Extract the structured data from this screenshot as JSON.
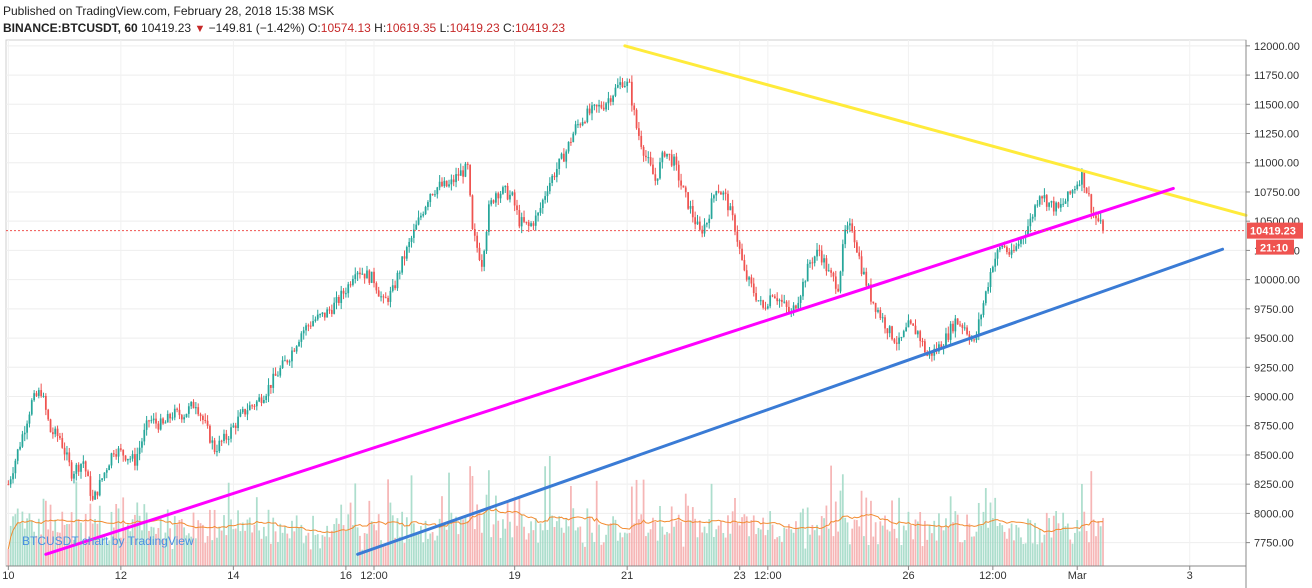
{
  "header": {
    "published": "Published on TradingView.com, February 28, 2018 15:38 MSK",
    "symbol": "BINANCE:BTCUSDT, 60",
    "last": "10419.23",
    "change": "−149.81 (−1.42%)",
    "o_label": "O:",
    "o_val": "10574.13",
    "h_label": "H:",
    "h_val": "10619.35",
    "l_label": "L:",
    "l_val": "10419.23",
    "c_label": "C:",
    "c_val": "10419.23"
  },
  "watermark": "BTCUSDT chart by TradingView",
  "price_tag": {
    "value": "10419.23",
    "countdown": "21:10"
  },
  "colors": {
    "up": "#26a69a",
    "down": "#ef5350",
    "yellow": "#ffeb3b",
    "magenta": "#ff00ff",
    "blue": "#3a7bd5",
    "ma": "#f28b30"
  },
  "chart_data": {
    "type": "candlestick",
    "ylim": [
      7550,
      12050
    ],
    "yticks": [
      7750,
      8000,
      8250,
      8500,
      8750,
      9000,
      9250,
      9500,
      9750,
      10000,
      10250,
      10500,
      10750,
      11000,
      11250,
      11500,
      11750,
      12000
    ],
    "ytick_labels": [
      "7750.00",
      "8000.00",
      "8250.00",
      "8500.00",
      "8750.00",
      "9000.00",
      "9250.00",
      "9500.00",
      "9750.00",
      "10000.00",
      "10250.00",
      "10500.00",
      "10750.00",
      "11000.00",
      "11250.00",
      "11500.00",
      "11750.00",
      "12000.00"
    ],
    "xticks": [
      {
        "label": "10",
        "t": 0
      },
      {
        "label": "12",
        "t": 48
      },
      {
        "label": "14",
        "t": 96
      },
      {
        "label": "16",
        "t": 144
      },
      {
        "label": "12:00",
        "t": 156
      },
      {
        "label": "19",
        "t": 216
      },
      {
        "label": "21",
        "t": 264
      },
      {
        "label": "23",
        "t": 312
      },
      {
        "label": "12:00",
        "t": 324
      },
      {
        "label": "26",
        "t": 384
      },
      {
        "label": "12:00",
        "t": 420
      },
      {
        "label": "Mar",
        "t": 456
      },
      {
        "label": "3",
        "t": 504
      }
    ],
    "t_range": [
      -1,
      528
    ],
    "close_path": [
      [
        0,
        8250
      ],
      [
        5,
        8600
      ],
      [
        10,
        8950
      ],
      [
        14,
        9050
      ],
      [
        18,
        8700
      ],
      [
        22,
        8650
      ],
      [
        27,
        8350
      ],
      [
        32,
        8450
      ],
      [
        36,
        8100
      ],
      [
        40,
        8300
      ],
      [
        45,
        8550
      ],
      [
        50,
        8500
      ],
      [
        54,
        8450
      ],
      [
        60,
        8800
      ],
      [
        66,
        8750
      ],
      [
        70,
        8850
      ],
      [
        75,
        8850
      ],
      [
        80,
        8950
      ],
      [
        85,
        8700
      ],
      [
        88,
        8550
      ],
      [
        93,
        8650
      ],
      [
        98,
        8800
      ],
      [
        102,
        8900
      ],
      [
        106,
        8950
      ],
      [
        110,
        9050
      ],
      [
        115,
        9200
      ],
      [
        120,
        9350
      ],
      [
        125,
        9550
      ],
      [
        130,
        9650
      ],
      [
        135,
        9700
      ],
      [
        140,
        9800
      ],
      [
        145,
        9950
      ],
      [
        148,
        10100
      ],
      [
        152,
        10050
      ],
      [
        156,
        10000
      ],
      [
        160,
        9800
      ],
      [
        164,
        9900
      ],
      [
        168,
        10150
      ],
      [
        172,
        10350
      ],
      [
        176,
        10550
      ],
      [
        180,
        10750
      ],
      [
        184,
        10800
      ],
      [
        188,
        10800
      ],
      [
        192,
        10900
      ],
      [
        196,
        10950
      ],
      [
        198,
        10400
      ],
      [
        202,
        10150
      ],
      [
        205,
        10600
      ],
      [
        208,
        10750
      ],
      [
        212,
        10750
      ],
      [
        215,
        10700
      ],
      [
        218,
        10500
      ],
      [
        222,
        10450
      ],
      [
        226,
        10550
      ],
      [
        230,
        10800
      ],
      [
        234,
        10950
      ],
      [
        238,
        11100
      ],
      [
        242,
        11300
      ],
      [
        246,
        11400
      ],
      [
        250,
        11450
      ],
      [
        254,
        11500
      ],
      [
        258,
        11600
      ],
      [
        262,
        11700
      ],
      [
        265,
        11650
      ],
      [
        268,
        11300
      ],
      [
        272,
        11050
      ],
      [
        276,
        10850
      ],
      [
        280,
        11100
      ],
      [
        284,
        11000
      ],
      [
        288,
        10750
      ],
      [
        292,
        10550
      ],
      [
        295,
        10400
      ],
      [
        298,
        10500
      ],
      [
        302,
        10800
      ],
      [
        306,
        10700
      ],
      [
        310,
        10450
      ],
      [
        314,
        10050
      ],
      [
        318,
        9900
      ],
      [
        322,
        9750
      ],
      [
        326,
        9900
      ],
      [
        330,
        9800
      ],
      [
        334,
        9700
      ],
      [
        338,
        9900
      ],
      [
        342,
        10150
      ],
      [
        346,
        10250
      ],
      [
        350,
        10050
      ],
      [
        354,
        9950
      ],
      [
        357,
        10400
      ],
      [
        360,
        10450
      ],
      [
        364,
        10100
      ],
      [
        368,
        9850
      ],
      [
        372,
        9700
      ],
      [
        376,
        9550
      ],
      [
        380,
        9450
      ],
      [
        384,
        9600
      ],
      [
        388,
        9550
      ],
      [
        392,
        9350
      ],
      [
        396,
        9400
      ],
      [
        400,
        9500
      ],
      [
        404,
        9650
      ],
      [
        408,
        9600
      ],
      [
        412,
        9450
      ],
      [
        416,
        9800
      ],
      [
        420,
        10150
      ],
      [
        424,
        10300
      ],
      [
        428,
        10200
      ],
      [
        432,
        10350
      ],
      [
        436,
        10500
      ],
      [
        440,
        10750
      ],
      [
        444,
        10650
      ],
      [
        448,
        10600
      ],
      [
        452,
        10700
      ],
      [
        455,
        10800
      ],
      [
        458,
        10900
      ],
      [
        461,
        10700
      ],
      [
        463,
        10550
      ],
      [
        465,
        10500
      ],
      [
        467,
        10419
      ]
    ],
    "trendlines": [
      {
        "name": "resistance",
        "color": "yellow",
        "from": [
          263,
          12000
        ],
        "to": [
          528,
          10550
        ]
      },
      {
        "name": "support-inner",
        "color": "magenta",
        "from": [
          16,
          7650
        ],
        "to": [
          497,
          10780
        ]
      },
      {
        "name": "support-outer",
        "color": "blue",
        "from": [
          149,
          7650
        ],
        "to": [
          518,
          10260
        ]
      }
    ],
    "last_price": 10419.23
  }
}
